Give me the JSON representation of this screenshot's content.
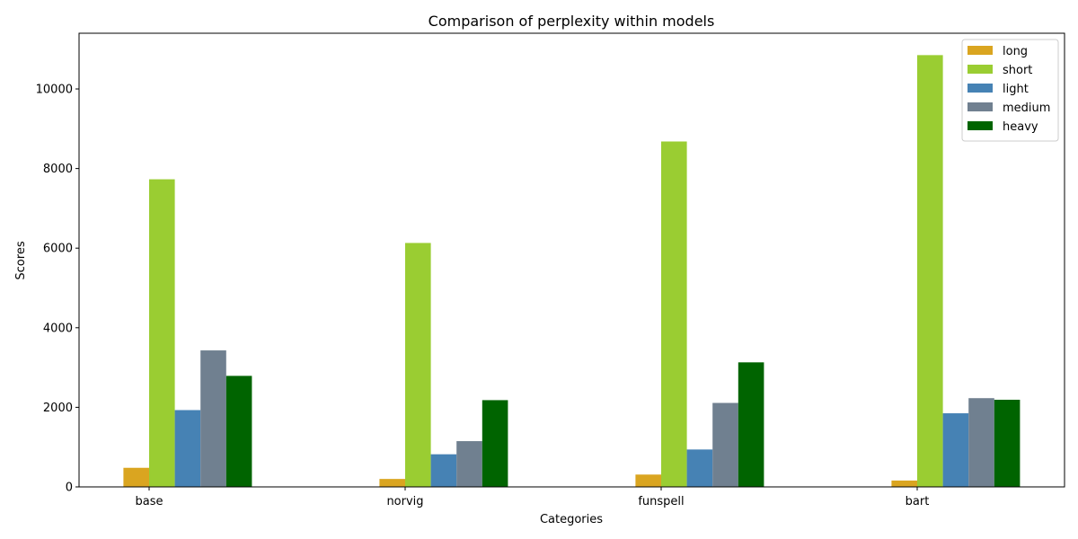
{
  "chart_data": {
    "type": "bar",
    "title": "Comparison of perplexity within models",
    "xlabel": "Categories",
    "ylabel": "Scores",
    "categories": [
      "base",
      "norvig",
      "funspell",
      "bart"
    ],
    "ylim": [
      0,
      11400
    ],
    "yticks": [
      0,
      2000,
      4000,
      6000,
      8000,
      10000
    ],
    "legend_position": "top-right",
    "grid": false,
    "series": [
      {
        "name": "long",
        "color": "#daa520",
        "values": [
          480,
          200,
          310,
          160
        ]
      },
      {
        "name": "short",
        "color": "#9acd32",
        "values": [
          7730,
          6130,
          8680,
          10850
        ]
      },
      {
        "name": "light",
        "color": "#4682b4",
        "values": [
          1930,
          820,
          940,
          1850
        ]
      },
      {
        "name": "medium",
        "color": "#708090",
        "values": [
          3430,
          1150,
          2110,
          2230
        ]
      },
      {
        "name": "heavy",
        "color": "#006400",
        "values": [
          2790,
          2180,
          3130,
          2190
        ]
      }
    ]
  }
}
